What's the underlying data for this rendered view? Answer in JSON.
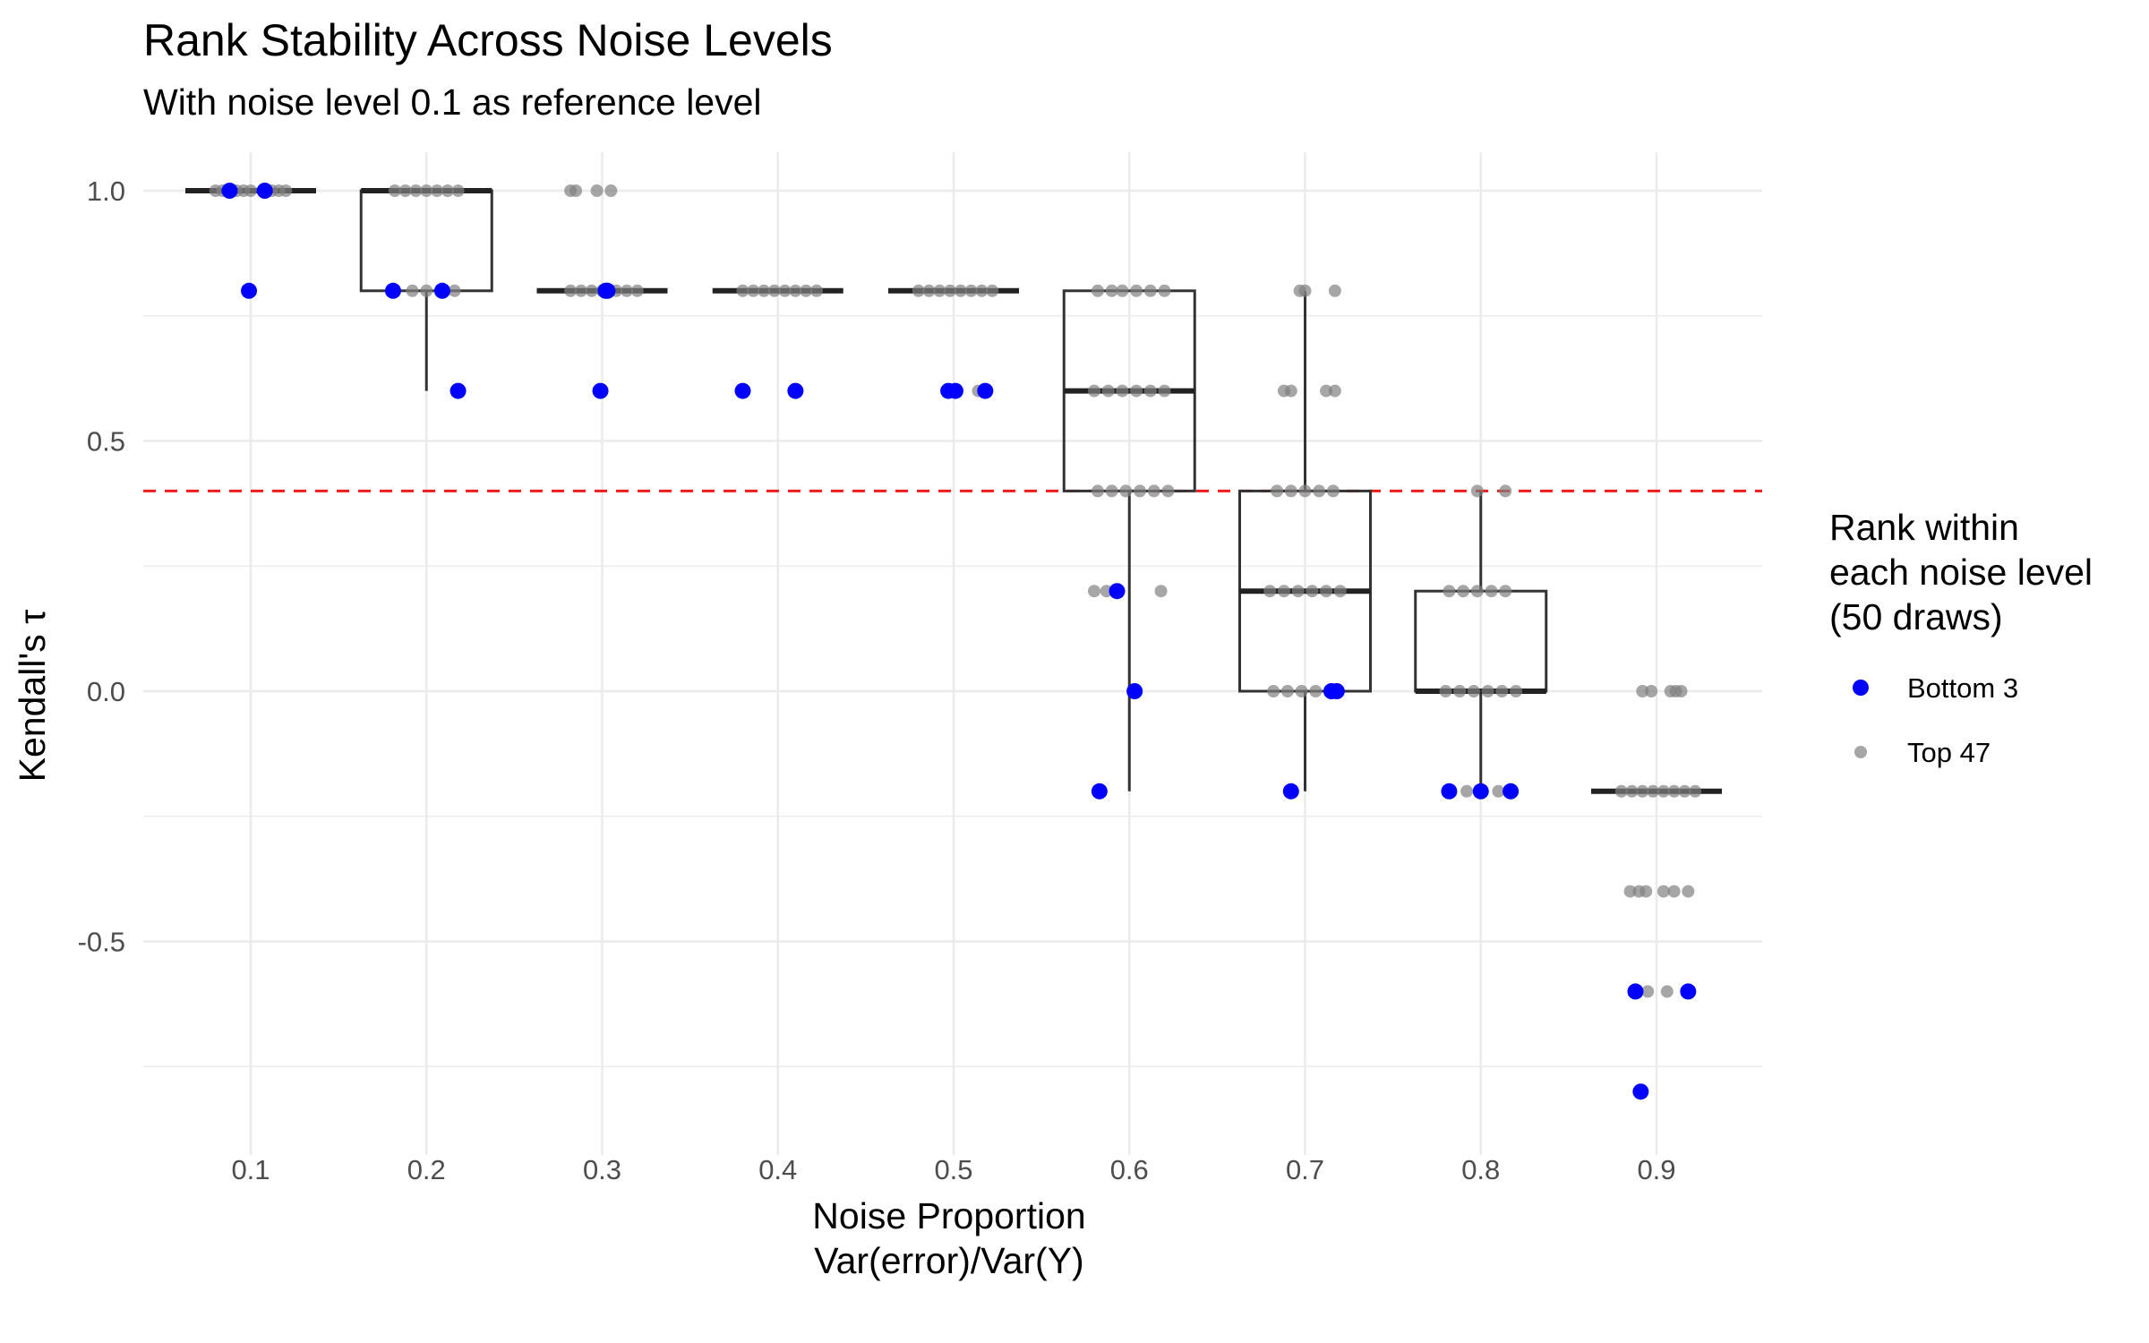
{
  "chart_data": {
    "type": "box",
    "title": "Rank Stability Across Noise Levels",
    "subtitle": "With noise level 0.1 as reference level",
    "xlabel": [
      "Noise Proportion",
      "Var(error)/Var(Y)"
    ],
    "ylabel": "Kendall's τ",
    "categories": [
      "0.1",
      "0.2",
      "0.3",
      "0.4",
      "0.5",
      "0.6",
      "0.7",
      "0.8",
      "0.9"
    ],
    "y_ticks": [
      {
        "value": 1.0,
        "label": "1.0"
      },
      {
        "value": 0.5,
        "label": "0.5"
      },
      {
        "value": 0.0,
        "label": "0.0"
      },
      {
        "value": -0.5,
        "label": "-0.5"
      }
    ],
    "ylim": [
      -0.9,
      1.05
    ],
    "grid": true,
    "reference_line": {
      "y": 0.4,
      "color": "#ee1c1c",
      "style": "dashed"
    },
    "boxes": [
      {
        "category": "0.1",
        "q1": 1.0,
        "median": 1.0,
        "q3": 1.0,
        "whisker_low": 1.0,
        "whisker_high": 1.0
      },
      {
        "category": "0.2",
        "q1": 0.8,
        "median": 1.0,
        "q3": 1.0,
        "whisker_low": 0.6,
        "whisker_high": 1.0
      },
      {
        "category": "0.3",
        "q1": 0.8,
        "median": 0.8,
        "q3": 0.8,
        "whisker_low": 0.8,
        "whisker_high": 0.8
      },
      {
        "category": "0.4",
        "q1": 0.8,
        "median": 0.8,
        "q3": 0.8,
        "whisker_low": 0.8,
        "whisker_high": 0.8
      },
      {
        "category": "0.5",
        "q1": 0.8,
        "median": 0.8,
        "q3": 0.8,
        "whisker_low": 0.8,
        "whisker_high": 0.8
      },
      {
        "category": "0.6",
        "q1": 0.4,
        "median": 0.6,
        "q3": 0.8,
        "whisker_low": -0.2,
        "whisker_high": 0.8
      },
      {
        "category": "0.7",
        "q1": 0.0,
        "median": 0.2,
        "q3": 0.4,
        "whisker_low": -0.2,
        "whisker_high": 0.8
      },
      {
        "category": "0.8",
        "q1": 0.0,
        "median": 0.0,
        "q3": 0.2,
        "whisker_low": -0.2,
        "whisker_high": 0.4
      },
      {
        "category": "0.9",
        "q1": -0.2,
        "median": -0.2,
        "q3": -0.2,
        "whisker_low": -0.2,
        "whisker_high": -0.2
      }
    ],
    "series": [
      {
        "name": "Bottom 3",
        "color": "#0000ff",
        "points": [
          {
            "x": 0.1,
            "y": 1.0,
            "jitter": -0.012
          },
          {
            "x": 0.1,
            "y": 1.0,
            "jitter": 0.008
          },
          {
            "x": 0.1,
            "y": 0.8,
            "jitter": -0.001
          },
          {
            "x": 0.2,
            "y": 0.8,
            "jitter": -0.019
          },
          {
            "x": 0.2,
            "y": 0.8,
            "jitter": 0.009
          },
          {
            "x": 0.2,
            "y": 0.6,
            "jitter": 0.018
          },
          {
            "x": 0.3,
            "y": 0.8,
            "jitter": 0.002
          },
          {
            "x": 0.3,
            "y": 0.8,
            "jitter": 0.003
          },
          {
            "x": 0.3,
            "y": 0.6,
            "jitter": -0.001
          },
          {
            "x": 0.4,
            "y": 0.6,
            "jitter": -0.02
          },
          {
            "x": 0.4,
            "y": 0.6,
            "jitter": 0.01
          },
          {
            "x": 0.5,
            "y": 0.6,
            "jitter": -0.003
          },
          {
            "x": 0.5,
            "y": 0.6,
            "jitter": 0.001
          },
          {
            "x": 0.5,
            "y": 0.6,
            "jitter": 0.018
          },
          {
            "x": 0.6,
            "y": 0.2,
            "jitter": -0.007
          },
          {
            "x": 0.6,
            "y": 0.0,
            "jitter": 0.003
          },
          {
            "x": 0.6,
            "y": -0.2,
            "jitter": -0.017
          },
          {
            "x": 0.7,
            "y": 0.0,
            "jitter": 0.015
          },
          {
            "x": 0.7,
            "y": 0.0,
            "jitter": 0.018
          },
          {
            "x": 0.7,
            "y": -0.2,
            "jitter": -0.008
          },
          {
            "x": 0.8,
            "y": -0.2,
            "jitter": -0.018
          },
          {
            "x": 0.8,
            "y": -0.2,
            "jitter": 0.0
          },
          {
            "x": 0.8,
            "y": -0.2,
            "jitter": 0.017
          },
          {
            "x": 0.9,
            "y": -0.6,
            "jitter": -0.012
          },
          {
            "x": 0.9,
            "y": -0.6,
            "jitter": 0.018
          },
          {
            "x": 0.9,
            "y": -0.8,
            "jitter": -0.009
          }
        ]
      },
      {
        "name": "Top 47",
        "color": "#808080",
        "points": [
          {
            "x": 0.1,
            "y": 1.0,
            "jitter": -0.02
          },
          {
            "x": 0.1,
            "y": 1.0,
            "jitter": -0.016
          },
          {
            "x": 0.1,
            "y": 1.0,
            "jitter": -0.008
          },
          {
            "x": 0.1,
            "y": 1.0,
            "jitter": -0.004
          },
          {
            "x": 0.1,
            "y": 1.0,
            "jitter": 0.0
          },
          {
            "x": 0.1,
            "y": 1.0,
            "jitter": 0.012
          },
          {
            "x": 0.1,
            "y": 1.0,
            "jitter": 0.016
          },
          {
            "x": 0.1,
            "y": 1.0,
            "jitter": 0.02
          },
          {
            "x": 0.2,
            "y": 1.0,
            "jitter": -0.018
          },
          {
            "x": 0.2,
            "y": 1.0,
            "jitter": -0.012
          },
          {
            "x": 0.2,
            "y": 1.0,
            "jitter": -0.006
          },
          {
            "x": 0.2,
            "y": 1.0,
            "jitter": 0.0
          },
          {
            "x": 0.2,
            "y": 1.0,
            "jitter": 0.006
          },
          {
            "x": 0.2,
            "y": 1.0,
            "jitter": 0.012
          },
          {
            "x": 0.2,
            "y": 1.0,
            "jitter": 0.018
          },
          {
            "x": 0.2,
            "y": 0.8,
            "jitter": -0.008
          },
          {
            "x": 0.2,
            "y": 0.8,
            "jitter": 0.0
          },
          {
            "x": 0.2,
            "y": 0.8,
            "jitter": 0.016
          },
          {
            "x": 0.3,
            "y": 1.0,
            "jitter": -0.018
          },
          {
            "x": 0.3,
            "y": 1.0,
            "jitter": -0.015
          },
          {
            "x": 0.3,
            "y": 1.0,
            "jitter": -0.003
          },
          {
            "x": 0.3,
            "y": 1.0,
            "jitter": 0.005
          },
          {
            "x": 0.3,
            "y": 0.8,
            "jitter": -0.018
          },
          {
            "x": 0.3,
            "y": 0.8,
            "jitter": -0.012
          },
          {
            "x": 0.3,
            "y": 0.8,
            "jitter": -0.006
          },
          {
            "x": 0.3,
            "y": 0.8,
            "jitter": 0.0
          },
          {
            "x": 0.3,
            "y": 0.8,
            "jitter": 0.008
          },
          {
            "x": 0.3,
            "y": 0.8,
            "jitter": 0.014
          },
          {
            "x": 0.3,
            "y": 0.8,
            "jitter": 0.02
          },
          {
            "x": 0.4,
            "y": 0.8,
            "jitter": -0.02
          },
          {
            "x": 0.4,
            "y": 0.8,
            "jitter": -0.014
          },
          {
            "x": 0.4,
            "y": 0.8,
            "jitter": -0.008
          },
          {
            "x": 0.4,
            "y": 0.8,
            "jitter": -0.002
          },
          {
            "x": 0.4,
            "y": 0.8,
            "jitter": 0.004
          },
          {
            "x": 0.4,
            "y": 0.8,
            "jitter": 0.01
          },
          {
            "x": 0.4,
            "y": 0.8,
            "jitter": 0.016
          },
          {
            "x": 0.4,
            "y": 0.8,
            "jitter": 0.022
          },
          {
            "x": 0.5,
            "y": 0.8,
            "jitter": -0.02
          },
          {
            "x": 0.5,
            "y": 0.8,
            "jitter": -0.014
          },
          {
            "x": 0.5,
            "y": 0.8,
            "jitter": -0.008
          },
          {
            "x": 0.5,
            "y": 0.8,
            "jitter": -0.002
          },
          {
            "x": 0.5,
            "y": 0.8,
            "jitter": 0.004
          },
          {
            "x": 0.5,
            "y": 0.8,
            "jitter": 0.01
          },
          {
            "x": 0.5,
            "y": 0.8,
            "jitter": 0.016
          },
          {
            "x": 0.5,
            "y": 0.8,
            "jitter": 0.022
          },
          {
            "x": 0.5,
            "y": 0.6,
            "jitter": 0.014
          },
          {
            "x": 0.6,
            "y": 0.8,
            "jitter": -0.018
          },
          {
            "x": 0.6,
            "y": 0.8,
            "jitter": -0.01
          },
          {
            "x": 0.6,
            "y": 0.8,
            "jitter": -0.004
          },
          {
            "x": 0.6,
            "y": 0.8,
            "jitter": 0.004
          },
          {
            "x": 0.6,
            "y": 0.8,
            "jitter": 0.012
          },
          {
            "x": 0.6,
            "y": 0.8,
            "jitter": 0.02
          },
          {
            "x": 0.6,
            "y": 0.6,
            "jitter": -0.02
          },
          {
            "x": 0.6,
            "y": 0.6,
            "jitter": -0.012
          },
          {
            "x": 0.6,
            "y": 0.6,
            "jitter": -0.004
          },
          {
            "x": 0.6,
            "y": 0.6,
            "jitter": 0.004
          },
          {
            "x": 0.6,
            "y": 0.6,
            "jitter": 0.012
          },
          {
            "x": 0.6,
            "y": 0.6,
            "jitter": 0.02
          },
          {
            "x": 0.6,
            "y": 0.4,
            "jitter": -0.018
          },
          {
            "x": 0.6,
            "y": 0.4,
            "jitter": -0.01
          },
          {
            "x": 0.6,
            "y": 0.4,
            "jitter": -0.002
          },
          {
            "x": 0.6,
            "y": 0.4,
            "jitter": 0.006
          },
          {
            "x": 0.6,
            "y": 0.4,
            "jitter": 0.014
          },
          {
            "x": 0.6,
            "y": 0.4,
            "jitter": 0.022
          },
          {
            "x": 0.6,
            "y": 0.2,
            "jitter": -0.02
          },
          {
            "x": 0.6,
            "y": 0.2,
            "jitter": -0.013
          },
          {
            "x": 0.6,
            "y": 0.2,
            "jitter": 0.018
          },
          {
            "x": 0.7,
            "y": 0.8,
            "jitter": -0.003
          },
          {
            "x": 0.7,
            "y": 0.8,
            "jitter": 0.0
          },
          {
            "x": 0.7,
            "y": 0.8,
            "jitter": 0.017
          },
          {
            "x": 0.7,
            "y": 0.6,
            "jitter": -0.012
          },
          {
            "x": 0.7,
            "y": 0.6,
            "jitter": -0.008
          },
          {
            "x": 0.7,
            "y": 0.6,
            "jitter": 0.012
          },
          {
            "x": 0.7,
            "y": 0.6,
            "jitter": 0.017
          },
          {
            "x": 0.7,
            "y": 0.4,
            "jitter": -0.016
          },
          {
            "x": 0.7,
            "y": 0.4,
            "jitter": -0.008
          },
          {
            "x": 0.7,
            "y": 0.4,
            "jitter": 0.0
          },
          {
            "x": 0.7,
            "y": 0.4,
            "jitter": 0.008
          },
          {
            "x": 0.7,
            "y": 0.4,
            "jitter": 0.016
          },
          {
            "x": 0.7,
            "y": 0.2,
            "jitter": -0.02
          },
          {
            "x": 0.7,
            "y": 0.2,
            "jitter": -0.012
          },
          {
            "x": 0.7,
            "y": 0.2,
            "jitter": -0.004
          },
          {
            "x": 0.7,
            "y": 0.2,
            "jitter": 0.004
          },
          {
            "x": 0.7,
            "y": 0.2,
            "jitter": 0.012
          },
          {
            "x": 0.7,
            "y": 0.2,
            "jitter": 0.02
          },
          {
            "x": 0.7,
            "y": 0.0,
            "jitter": -0.018
          },
          {
            "x": 0.7,
            "y": 0.0,
            "jitter": -0.01
          },
          {
            "x": 0.7,
            "y": 0.0,
            "jitter": -0.002
          },
          {
            "x": 0.7,
            "y": 0.0,
            "jitter": 0.006
          },
          {
            "x": 0.8,
            "y": 0.4,
            "jitter": -0.002
          },
          {
            "x": 0.8,
            "y": 0.4,
            "jitter": 0.014
          },
          {
            "x": 0.8,
            "y": 0.2,
            "jitter": -0.018
          },
          {
            "x": 0.8,
            "y": 0.2,
            "jitter": -0.01
          },
          {
            "x": 0.8,
            "y": 0.2,
            "jitter": -0.002
          },
          {
            "x": 0.8,
            "y": 0.2,
            "jitter": 0.006
          },
          {
            "x": 0.8,
            "y": 0.2,
            "jitter": 0.014
          },
          {
            "x": 0.8,
            "y": 0.0,
            "jitter": -0.02
          },
          {
            "x": 0.8,
            "y": 0.0,
            "jitter": -0.012
          },
          {
            "x": 0.8,
            "y": 0.0,
            "jitter": -0.004
          },
          {
            "x": 0.8,
            "y": 0.0,
            "jitter": 0.004
          },
          {
            "x": 0.8,
            "y": 0.0,
            "jitter": 0.012
          },
          {
            "x": 0.8,
            "y": 0.0,
            "jitter": 0.02
          },
          {
            "x": 0.8,
            "y": -0.2,
            "jitter": -0.008
          },
          {
            "x": 0.8,
            "y": -0.2,
            "jitter": 0.01
          },
          {
            "x": 0.9,
            "y": 0.0,
            "jitter": -0.008
          },
          {
            "x": 0.9,
            "y": 0.0,
            "jitter": -0.003
          },
          {
            "x": 0.9,
            "y": 0.0,
            "jitter": 0.008
          },
          {
            "x": 0.9,
            "y": 0.0,
            "jitter": 0.011
          },
          {
            "x": 0.9,
            "y": 0.0,
            "jitter": 0.014
          },
          {
            "x": 0.9,
            "y": -0.2,
            "jitter": -0.02
          },
          {
            "x": 0.9,
            "y": -0.2,
            "jitter": -0.014
          },
          {
            "x": 0.9,
            "y": -0.2,
            "jitter": -0.008
          },
          {
            "x": 0.9,
            "y": -0.2,
            "jitter": -0.002
          },
          {
            "x": 0.9,
            "y": -0.2,
            "jitter": 0.004
          },
          {
            "x": 0.9,
            "y": -0.2,
            "jitter": 0.01
          },
          {
            "x": 0.9,
            "y": -0.2,
            "jitter": 0.016
          },
          {
            "x": 0.9,
            "y": -0.2,
            "jitter": 0.022
          },
          {
            "x": 0.9,
            "y": -0.4,
            "jitter": -0.015
          },
          {
            "x": 0.9,
            "y": -0.4,
            "jitter": -0.01
          },
          {
            "x": 0.9,
            "y": -0.4,
            "jitter": -0.006
          },
          {
            "x": 0.9,
            "y": -0.4,
            "jitter": 0.004
          },
          {
            "x": 0.9,
            "y": -0.4,
            "jitter": 0.01
          },
          {
            "x": 0.9,
            "y": -0.4,
            "jitter": 0.018
          },
          {
            "x": 0.9,
            "y": -0.6,
            "jitter": -0.005
          },
          {
            "x": 0.9,
            "y": -0.6,
            "jitter": 0.006
          }
        ]
      }
    ],
    "legend": {
      "title": [
        "Rank within",
        "each noise level",
        "(50 draws)"
      ],
      "position": "right",
      "entries": [
        {
          "label": "Bottom 3",
          "color": "#0000ff"
        },
        {
          "label": "Top 47",
          "color": "#808080"
        }
      ]
    }
  }
}
